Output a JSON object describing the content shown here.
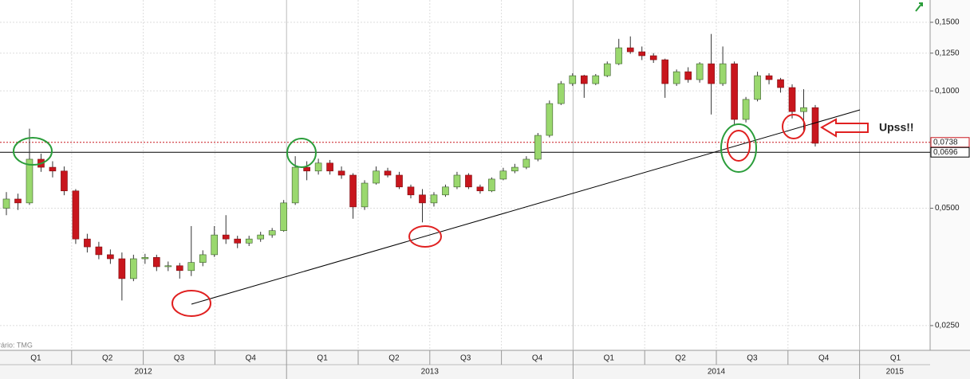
{
  "chart_data": {
    "type": "candlestick",
    "source": "rário: TMG",
    "annotation": "Upss!!",
    "log_scale": true,
    "grid": true,
    "up_color": "#9ad86e",
    "down_color": "#c8161d",
    "ylim": [
      0.0216,
      0.1711
    ],
    "yticks": [
      {
        "value": 0.025,
        "label": "0,0250"
      },
      {
        "value": 0.05,
        "label": "0,0500"
      },
      {
        "value": 0.1,
        "label": "0,1000"
      },
      {
        "value": 0.125,
        "label": "0,1250"
      },
      {
        "value": 0.15,
        "label": "0,1500"
      }
    ],
    "price_lines": [
      {
        "value": 0.0738,
        "label": "0,0738",
        "color": "#c8161d"
      },
      {
        "value": 0.0696,
        "label": "0,0696",
        "color": "#000000"
      }
    ],
    "quarters": [
      "Q1",
      "Q2",
      "Q3",
      "Q4",
      "Q1",
      "Q2",
      "Q3",
      "Q4",
      "Q1",
      "Q2",
      "Q3",
      "Q4",
      "Q1"
    ],
    "years": [
      "2012",
      "2013",
      "2014",
      "2015"
    ],
    "open": [
      0.05,
      0.0528,
      0.0516,
      0.0668,
      0.0637,
      0.0623,
      0.0554,
      0.0417,
      0.0398,
      0.038,
      0.0371,
      0.033,
      0.0371,
      0.0374,
      0.0354,
      0.0356,
      0.0346,
      0.0363,
      0.038,
      0.0427,
      0.0417,
      0.0407,
      0.0417,
      0.0427,
      0.0438,
      0.0516,
      0.0637,
      0.0623,
      0.0653,
      0.0623,
      0.0608,
      0.0504,
      0.058,
      0.0623,
      0.0608,
      0.0567,
      0.0541,
      0.0516,
      0.0541,
      0.0567,
      0.0608,
      0.0567,
      0.0554,
      0.0594,
      0.0623,
      0.0637,
      0.0668,
      0.0769,
      0.0928,
      0.1044,
      0.1094,
      0.1044,
      0.1094,
      0.1174,
      0.129,
      0.126,
      0.1231,
      0.1202,
      0.1044,
      0.112,
      0.1069,
      0.1174,
      0.1044,
      0.1174,
      0.0845,
      0.0951,
      0.1094,
      0.1069,
      0.102,
      0.0885,
      0.0906
    ],
    "high": [
      0.055,
      0.0545,
      0.08,
      0.069,
      0.066,
      0.064,
      0.056,
      0.043,
      0.041,
      0.0392,
      0.0385,
      0.038,
      0.0382,
      0.038,
      0.0365,
      0.0362,
      0.045,
      0.039,
      0.045,
      0.048,
      0.0425,
      0.0425,
      0.0435,
      0.0445,
      0.0525,
      0.068,
      0.066,
      0.067,
      0.0665,
      0.064,
      0.0615,
      0.059,
      0.064,
      0.0635,
      0.062,
      0.0575,
      0.056,
      0.055,
      0.0575,
      0.062,
      0.0615,
      0.0575,
      0.06,
      0.0635,
      0.065,
      0.068,
      0.078,
      0.0945,
      0.106,
      0.111,
      0.11,
      0.1105,
      0.119,
      0.136,
      0.138,
      0.13,
      0.125,
      0.121,
      0.1135,
      0.115,
      0.1185,
      0.14,
      0.13,
      0.119,
      0.0965,
      0.112,
      0.111,
      0.108,
      0.104,
      0.101,
      0.092
    ],
    "low": [
      0.048,
      0.0495,
      0.051,
      0.062,
      0.06,
      0.054,
      0.0405,
      0.0385,
      0.037,
      0.036,
      0.029,
      0.0325,
      0.036,
      0.0345,
      0.0345,
      0.033,
      0.0335,
      0.0355,
      0.0375,
      0.0405,
      0.0395,
      0.04,
      0.041,
      0.042,
      0.0435,
      0.051,
      0.059,
      0.061,
      0.061,
      0.0595,
      0.047,
      0.0495,
      0.0575,
      0.06,
      0.056,
      0.053,
      0.046,
      0.0505,
      0.0535,
      0.056,
      0.056,
      0.0545,
      0.055,
      0.059,
      0.0615,
      0.063,
      0.066,
      0.076,
      0.092,
      0.103,
      0.096,
      0.1035,
      0.1085,
      0.1165,
      0.1245,
      0.12,
      0.118,
      0.096,
      0.103,
      0.105,
      0.105,
      0.087,
      0.103,
      0.082,
      0.083,
      0.094,
      0.104,
      0.099,
      0.085,
      0.079,
      0.072
    ],
    "close": [
      0.0528,
      0.0516,
      0.0668,
      0.0637,
      0.0623,
      0.0554,
      0.0417,
      0.0398,
      0.038,
      0.0371,
      0.033,
      0.0371,
      0.0374,
      0.0354,
      0.0356,
      0.0346,
      0.0363,
      0.038,
      0.0427,
      0.0417,
      0.0407,
      0.0417,
      0.0427,
      0.0438,
      0.0516,
      0.0637,
      0.0623,
      0.0653,
      0.0623,
      0.0608,
      0.0504,
      0.058,
      0.0623,
      0.0608,
      0.0567,
      0.0541,
      0.0516,
      0.0541,
      0.0567,
      0.0608,
      0.0567,
      0.0554,
      0.0594,
      0.0623,
      0.0637,
      0.0668,
      0.0769,
      0.0928,
      0.1044,
      0.1094,
      0.1044,
      0.1094,
      0.1174,
      0.129,
      0.126,
      0.1231,
      0.1202,
      0.1044,
      0.112,
      0.1069,
      0.1174,
      0.1044,
      0.1174,
      0.0845,
      0.0951,
      0.1094,
      0.1069,
      0.102,
      0.0885,
      0.0906,
      0.0734
    ]
  }
}
